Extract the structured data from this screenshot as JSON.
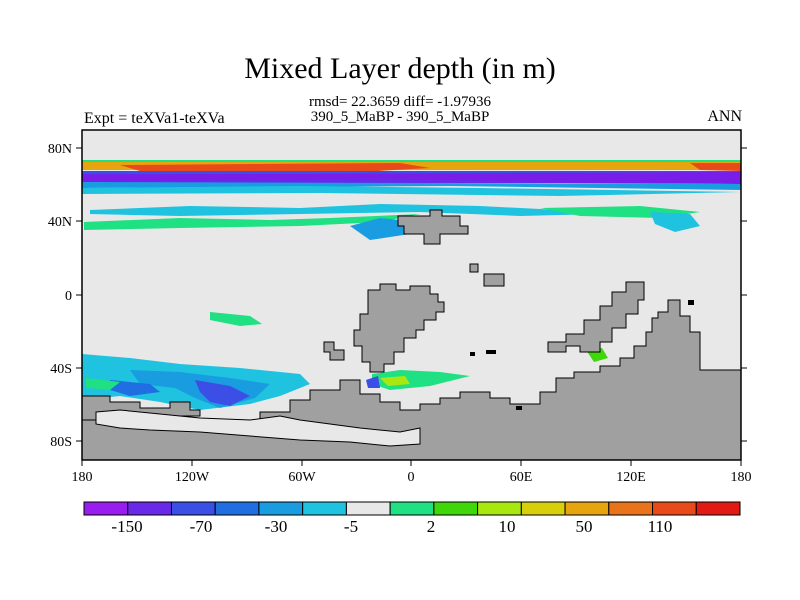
{
  "figure": {
    "title": "Mixed Layer depth (in m)",
    "stats_line": "rmsd= 22.3659 diff= -1.97936",
    "case_line": "390_5_MaBP - 390_5_MaBP",
    "left_label": "Expt = teXVa1-teXVa",
    "right_label": "ANN"
  },
  "axes": {
    "lat_ticks": [
      "80N",
      "40N",
      "0",
      "40S",
      "80S"
    ],
    "lon_ticks": [
      "180",
      "120W",
      "60W",
      "0",
      "60E",
      "120E",
      "180"
    ],
    "lat_range": [
      -90,
      90
    ],
    "lon_range": [
      -180,
      180
    ]
  },
  "colorbar": {
    "labels": [
      "-150",
      "-70",
      "-30",
      "-5",
      "2",
      "10",
      "50",
      "110"
    ],
    "colors": [
      "#9a1df0",
      "#6a28e8",
      "#3b4ee6",
      "#1f6fe2",
      "#1a9ce0",
      "#1fc3df",
      "#e8e8e8",
      "#1fe082",
      "#3fd70a",
      "#a8e80f",
      "#d7cf0a",
      "#e6a50f",
      "#e8731a",
      "#e84a19",
      "#e21a14"
    ]
  },
  "chart_data": {
    "type": "heatmap",
    "title": "Mixed Layer depth (in m)",
    "xlabel": "",
    "ylabel": "",
    "x_range": [
      -180,
      180
    ],
    "y_range": [
      -90,
      90
    ],
    "background_value_color": "#e8e8e8",
    "land_color": "#a0a0a0",
    "features": [
      {
        "region": "northern high-latitude band 60N-70N",
        "color": "#6a28e8",
        "note": "strong negative"
      },
      {
        "region": "northern band ~72N",
        "color": "#e8731a",
        "note": "strong positive"
      },
      {
        "region": "southern ocean 40S-60S, 180-60W",
        "color": "#1f6fe2",
        "note": "negative"
      }
    ]
  }
}
